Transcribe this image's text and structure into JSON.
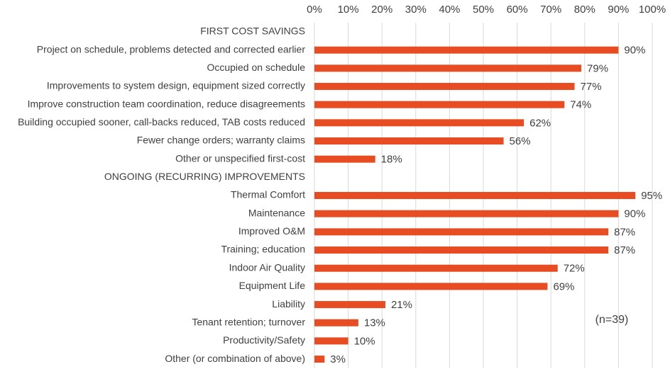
{
  "chart_data": {
    "type": "hbar",
    "categories": [
      "FIRST COST SAVINGS",
      "Project on schedule, problems detected and corrected earlier",
      "Occupied on schedule",
      "Improvements to system design, equipment sized correctly",
      "Improve construction team coordination, reduce disagreements",
      "Building occupied sooner, call-backs reduced, TAB costs reduced",
      "Fewer change orders; warranty claims",
      "Other or unspecified first-cost",
      "ONGOING (RECURRING) IMPROVEMENTS",
      "Thermal Comfort",
      "Maintenance",
      "Improved O&M",
      "Training; education",
      "Indoor Air Quality",
      "Equipment Life",
      "Liability",
      "Tenant retention; turnover",
      "Productivity/Safety",
      "Other (or combination of above)"
    ],
    "values": [
      null,
      90,
      79,
      77,
      74,
      62,
      56,
      18,
      null,
      95,
      90,
      87,
      87,
      72,
      69,
      21,
      13,
      10,
      3
    ],
    "value_labels": [
      null,
      "90%",
      "79%",
      "77%",
      "74%",
      "62%",
      "56%",
      "18%",
      null,
      "95%",
      "90%",
      "87%",
      "87%",
      "72%",
      "69%",
      "21%",
      "13%",
      "10%",
      "3%"
    ],
    "color": "#e84c22",
    "xlim": [
      0,
      100
    ],
    "xticks": [
      {
        "value": 0,
        "label": "0%"
      },
      {
        "value": 10,
        "label": "10%"
      },
      {
        "value": 20,
        "label": "20%"
      },
      {
        "value": 30,
        "label": "30%"
      },
      {
        "value": 40,
        "label": "40%"
      },
      {
        "value": 50,
        "label": "50%"
      },
      {
        "value": 60,
        "label": "60%"
      },
      {
        "value": 70,
        "label": "70%"
      },
      {
        "value": 80,
        "label": "80%"
      },
      {
        "value": 90,
        "label": "90%"
      },
      {
        "value": 100,
        "label": "100%"
      }
    ],
    "grid": true,
    "annotation": "(n=39)"
  }
}
